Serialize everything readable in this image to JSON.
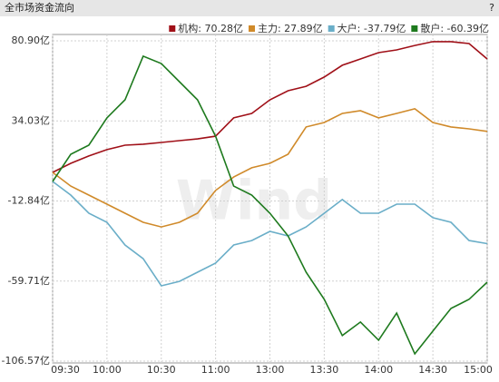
{
  "header": {
    "title": "全市场资金流向",
    "help": "?"
  },
  "chart_data": {
    "type": "line",
    "watermark": "Wind",
    "x": [
      0,
      10,
      20,
      30,
      40,
      50,
      60,
      70,
      80,
      90,
      100,
      110,
      120,
      130,
      140,
      150,
      160,
      170,
      180,
      190,
      200,
      210,
      220,
      230,
      240
    ],
    "xlim": [
      0,
      240
    ],
    "xticks": [
      {
        "value": 0,
        "label": "09:30"
      },
      {
        "value": 30,
        "label": "10:00"
      },
      {
        "value": 60,
        "label": "10:30"
      },
      {
        "value": 90,
        "label": "11:00"
      },
      {
        "value": 120,
        "label": "13:00"
      },
      {
        "value": 150,
        "label": "13:30"
      },
      {
        "value": 180,
        "label": "14:00"
      },
      {
        "value": 210,
        "label": "14:30"
      },
      {
        "value": 240,
        "label": "15:00"
      }
    ],
    "ylim": [
      -106.57,
      80.9
    ],
    "yticks": [
      {
        "value": 80.9,
        "label": "80.90亿"
      },
      {
        "value": 34.03,
        "label": "34.03亿"
      },
      {
        "value": -12.84,
        "label": "-12.84亿"
      },
      {
        "value": -59.71,
        "label": "-59.71亿"
      },
      {
        "value": -106.57,
        "label": "-106.57亿"
      }
    ],
    "grid": true,
    "legend": "top-right",
    "series": [
      {
        "name": "机构: 70.28亿",
        "color": "#a01018",
        "values": [
          3.9,
          9.2,
          13.5,
          17.2,
          19.8,
          20.4,
          21.4,
          22.5,
          23.5,
          25.1,
          35.8,
          38.4,
          46.4,
          51.7,
          54.3,
          59.7,
          66.6,
          70.3,
          74.0,
          75.6,
          78.2,
          80.4,
          80.4,
          79.3,
          70.28
        ]
      },
      {
        "name": "主力: 27.89亿",
        "color": "#d08a2a",
        "values": [
          3.9,
          -4.1,
          -9.4,
          -14.7,
          -20.0,
          -25.3,
          -28.0,
          -25.3,
          -20.0,
          -6.7,
          1.2,
          6.6,
          9.2,
          14.5,
          30.5,
          33.1,
          38.4,
          40.0,
          35.8,
          38.4,
          41.1,
          33.1,
          30.5,
          29.4,
          27.89
        ]
      },
      {
        "name": "大户: -37.79亿",
        "color": "#6aaec8",
        "values": [
          -1.4,
          -9.4,
          -20.0,
          -25.3,
          -38.6,
          -46.6,
          -62.5,
          -59.9,
          -54.5,
          -49.2,
          -38.6,
          -36.0,
          -30.6,
          -33.3,
          -28.0,
          -20.0,
          -12.0,
          -20.0,
          -20.0,
          -14.7,
          -14.7,
          -22.6,
          -25.3,
          -36.0,
          -37.79
        ]
      },
      {
        "name": "散户: -60.39亿",
        "color": "#1e7a1e",
        "values": [
          -1.4,
          14.5,
          19.8,
          35.8,
          46.4,
          71.9,
          67.6,
          57.0,
          46.4,
          25.1,
          -4.1,
          -9.4,
          -20.0,
          -33.3,
          -54.5,
          -70.4,
          -91.6,
          -83.7,
          -94.3,
          -78.4,
          -102.3,
          -89.0,
          -75.7,
          -70.4,
          -60.39
        ]
      }
    ]
  }
}
